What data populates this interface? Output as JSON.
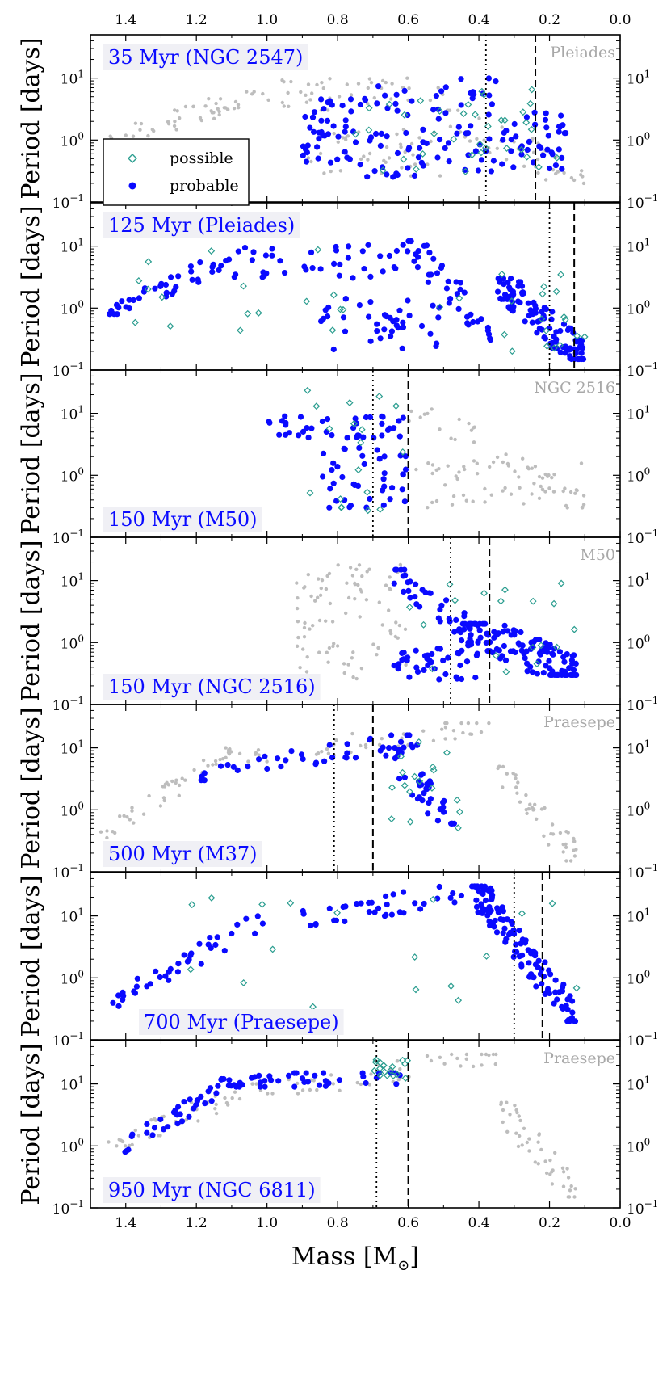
{
  "chart_data": {
    "type": "scatter",
    "xlabel": "Mass [M",
    "xlabel_sub": "⊙",
    "xlabel_close": "]",
    "ylabel": "Period [days]",
    "xlim": [
      1.5,
      0.0
    ],
    "ylim": [
      0.1,
      50
    ],
    "x_ticks": [
      1.4,
      1.2,
      1.0,
      0.8,
      0.6,
      0.4,
      0.2,
      0.0
    ],
    "x_tick_labels": [
      "1.4",
      "1.2",
      "1.0",
      "0.8",
      "0.6",
      "0.4",
      "0.2",
      "0.0"
    ],
    "y_ticks": [
      {
        "value": 10,
        "base": "10",
        "exp": "1"
      },
      {
        "value": 1,
        "base": "10",
        "exp": "0"
      },
      {
        "value": 0.1,
        "base": "10",
        "exp": "−1"
      }
    ],
    "legend": {
      "location": "lower-left of top panel",
      "entries": [
        {
          "label": "possible",
          "marker": "open-diamond",
          "color": "#2a9d8f"
        },
        {
          "label": "probable",
          "marker": "filled-circle",
          "color": "#0a0aff"
        }
      ]
    },
    "colors": {
      "probable": "#0a0aff",
      "possible": "#2a9d8f",
      "reference": "#bdbdbd"
    },
    "panels": [
      {
        "label": "35 Myr (NGC 2547)",
        "label_pos": "top",
        "reference": "Pleiades",
        "dotted_line_mass": 0.38,
        "dashed_line_mass": 0.24,
        "probable_region": [
          {
            "mass_range": [
              0.9,
              0.75
            ],
            "period_range": [
              0.4,
              5
            ]
          },
          {
            "mass_range": [
              0.75,
              0.55
            ],
            "period_range": [
              0.25,
              8
            ]
          },
          {
            "mass_range": [
              0.55,
              0.35
            ],
            "period_range": [
              0.3,
              10
            ]
          },
          {
            "mass_range": [
              0.35,
              0.15
            ],
            "period_range": [
              0.3,
              3
            ]
          }
        ],
        "possible_region": [
          {
            "mass_range": [
              0.75,
              0.4
            ],
            "period_range": [
              0.3,
              6
            ]
          },
          {
            "mass_range": [
              0.4,
              0.15
            ],
            "period_range": [
              0.3,
              8
            ]
          }
        ],
        "reference_region": [
          {
            "mass_range": [
              1.45,
              1.0
            ],
            "period_range": [
              1,
              6
            ],
            "trend": "up"
          },
          {
            "mass_range": [
              1.0,
              0.5
            ],
            "period_range": [
              3,
              10
            ],
            "trend": "flat"
          },
          {
            "mass_range": [
              0.9,
              0.5
            ],
            "period_range": [
              0.25,
              1.5
            ],
            "trend": "flat"
          },
          {
            "mass_range": [
              0.5,
              0.1
            ],
            "period_range": [
              0.2,
              3
            ],
            "trend": "down"
          }
        ]
      },
      {
        "label": "125 Myr (Pleiades)",
        "label_pos": "top",
        "reference": "",
        "dotted_line_mass": 0.2,
        "dashed_line_mass": 0.13,
        "probable_region": [
          {
            "mass_range": [
              1.45,
              1.1
            ],
            "period_range": [
              0.8,
              7
            ],
            "trend": "up"
          },
          {
            "mass_range": [
              1.1,
              0.6
            ],
            "period_range": [
              3,
              11
            ],
            "trend": "flat"
          },
          {
            "mass_range": [
              0.85,
              0.5
            ],
            "period_range": [
              0.2,
              1.5
            ],
            "trend": "flat"
          },
          {
            "mass_range": [
              0.6,
              0.35
            ],
            "period_range": [
              0.3,
              12
            ],
            "trend": "down"
          },
          {
            "mass_range": [
              0.35,
              0.1
            ],
            "period_range": [
              0.15,
              3
            ],
            "trend": "down",
            "dense": true
          }
        ],
        "possible_region": [
          {
            "mass_range": [
              1.45,
              0.5
            ],
            "period_range": [
              0.3,
              10
            ]
          },
          {
            "mass_range": [
              0.5,
              0.1
            ],
            "period_range": [
              0.2,
              5
            ]
          }
        ],
        "reference_region": []
      },
      {
        "label": "150 Myr (M50)",
        "label_pos": "bottom",
        "reference": "NGC 2516",
        "dotted_line_mass": 0.7,
        "dashed_line_mass": 0.6,
        "probable_region": [
          {
            "mass_range": [
              1.02,
              0.6
            ],
            "period_range": [
              4,
              9
            ],
            "trend": "flat"
          },
          {
            "mass_range": [
              0.85,
              0.6
            ],
            "period_range": [
              0.3,
              3
            ],
            "trend": "flat"
          }
        ],
        "possible_region": [
          {
            "mass_range": [
              0.9,
              0.6
            ],
            "period_range": [
              0.25,
              25
            ]
          }
        ],
        "reference_region": [
          {
            "mass_range": [
              0.6,
              0.1
            ],
            "period_range": [
              0.3,
              15
            ],
            "trend": "down"
          },
          {
            "mass_range": [
              0.6,
              0.1
            ],
            "period_range": [
              0.3,
              2
            ],
            "trend": "flat"
          }
        ]
      },
      {
        "label": "150 Myr (NGC 2516)",
        "label_pos": "bottom",
        "reference": "M50",
        "dotted_line_mass": 0.48,
        "dashed_line_mass": 0.37,
        "probable_region": [
          {
            "mass_range": [
              0.64,
              0.4
            ],
            "period_range": [
              1,
              15
            ],
            "trend": "down"
          },
          {
            "mass_range": [
              0.64,
              0.4
            ],
            "period_range": [
              0.25,
              0.8
            ],
            "trend": "flat"
          },
          {
            "mass_range": [
              0.45,
              0.12
            ],
            "period_range": [
              0.3,
              2
            ],
            "trend": "down",
            "dense": true
          }
        ],
        "possible_region": [
          {
            "mass_range": [
              0.6,
              0.1
            ],
            "period_range": [
              0.25,
              10
            ]
          }
        ],
        "reference_region": [
          {
            "mass_range": [
              0.92,
              0.6
            ],
            "period_range": [
              3,
              20
            ],
            "trend": "flat"
          },
          {
            "mass_range": [
              0.92,
              0.6
            ],
            "period_range": [
              0.25,
              3
            ],
            "trend": "flat"
          }
        ]
      },
      {
        "label": "500 Myr (M37)",
        "label_pos": "bottom",
        "reference": "Praesepe",
        "dotted_line_mass": 0.81,
        "dashed_line_mass": 0.7,
        "probable_region": [
          {
            "mass_range": [
              1.2,
              0.57
            ],
            "period_range": [
              3,
              16
            ],
            "trend": "up"
          },
          {
            "mass_range": [
              0.68,
              0.47
            ],
            "period_range": [
              0.6,
              10
            ],
            "trend": "down"
          }
        ],
        "possible_region": [
          {
            "mass_range": [
              0.65,
              0.45
            ],
            "period_range": [
              0.5,
              18
            ]
          }
        ],
        "reference_region": [
          {
            "mass_range": [
              1.48,
              1.1
            ],
            "period_range": [
              0.3,
              10
            ],
            "trend": "up"
          },
          {
            "mass_range": [
              1.1,
              0.35
            ],
            "period_range": [
              6,
              25
            ],
            "trend": "up"
          },
          {
            "mass_range": [
              0.35,
              0.12
            ],
            "period_range": [
              0.15,
              5
            ],
            "trend": "down"
          }
        ]
      },
      {
        "label": "700 Myr (Praesepe)",
        "label_pos": "bottom",
        "reference": "",
        "dotted_line_mass": 0.3,
        "dashed_line_mass": 0.22,
        "probable_region": [
          {
            "mass_range": [
              1.45,
              1.0
            ],
            "period_range": [
              0.35,
              10
            ],
            "trend": "up"
          },
          {
            "mass_range": [
              1.0,
              0.35
            ],
            "period_range": [
              7,
              30
            ],
            "trend": "up"
          },
          {
            "mass_range": [
              0.42,
              0.12
            ],
            "period_range": [
              0.2,
              30
            ],
            "trend": "down",
            "dense": true
          }
        ],
        "possible_region": [
          {
            "mass_range": [
              1.3,
              0.12
            ],
            "period_range": [
              0.3,
              25
            ]
          }
        ],
        "reference_region": []
      },
      {
        "label": "950 Myr (NGC 6811)",
        "label_pos": "bottom",
        "reference": "Praesepe",
        "dotted_line_mass": 0.69,
        "dashed_line_mass": 0.6,
        "probable_region": [
          {
            "mass_range": [
              1.42,
              1.1
            ],
            "period_range": [
              0.8,
              12
            ],
            "trend": "up"
          },
          {
            "mass_range": [
              1.1,
              0.6
            ],
            "period_range": [
              9,
              15
            ],
            "trend": "up"
          }
        ],
        "possible_region": [
          {
            "mass_range": [
              0.7,
              0.6
            ],
            "period_range": [
              12,
              25
            ]
          }
        ],
        "reference_region": [
          {
            "mass_range": [
              1.45,
              1.0
            ],
            "period_range": [
              1,
              10
            ],
            "trend": "up"
          },
          {
            "mass_range": [
              1.0,
              0.35
            ],
            "period_range": [
              7,
              30
            ],
            "trend": "up"
          },
          {
            "mass_range": [
              0.35,
              0.12
            ],
            "period_range": [
              0.15,
              5
            ],
            "trend": "down"
          }
        ]
      }
    ]
  }
}
